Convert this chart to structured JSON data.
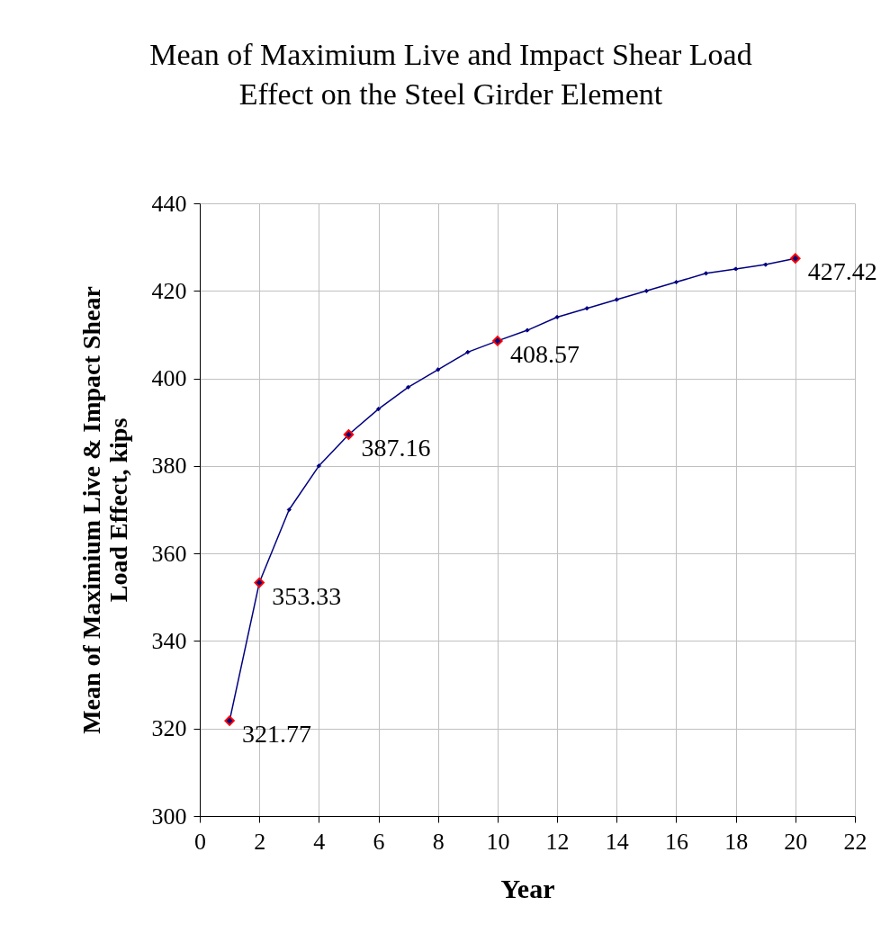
{
  "chart_data": {
    "type": "line",
    "title": "Mean of Maximium Live and Impact Shear Load Effect on the Steel Girder Element",
    "xlabel": "Year",
    "ylabel": "Mean of Maximium Live & Impact Shear Load Effect, kips",
    "xlim": [
      0,
      22
    ],
    "xticks": [
      0,
      2,
      4,
      6,
      8,
      10,
      12,
      14,
      16,
      18,
      20,
      22
    ],
    "ylim": [
      300,
      440
    ],
    "yticks": [
      300,
      320,
      340,
      360,
      380,
      400,
      420,
      440
    ],
    "grid": true,
    "series": [
      {
        "color": "#000080",
        "marker": "diamond",
        "x": [
          1,
          2,
          3,
          4,
          5,
          6,
          7,
          8,
          9,
          10,
          11,
          12,
          13,
          14,
          15,
          16,
          17,
          18,
          19,
          20
        ],
        "values": [
          321.77,
          353.33,
          370,
          380,
          387.16,
          393,
          398,
          402,
          406,
          408.57,
          411,
          414,
          416,
          418,
          420,
          422,
          424,
          425,
          426,
          427.42
        ]
      },
      {
        "type": "scatter",
        "color": "#ff0000",
        "marker": "diamond",
        "x": [
          1,
          2,
          5,
          10,
          20
        ],
        "values": [
          321.77,
          353.33,
          387.16,
          408.57,
          427.42
        ],
        "value_labels": [
          "321.77",
          "353.33",
          "387.16",
          "408.57",
          "427.42"
        ]
      }
    ]
  }
}
